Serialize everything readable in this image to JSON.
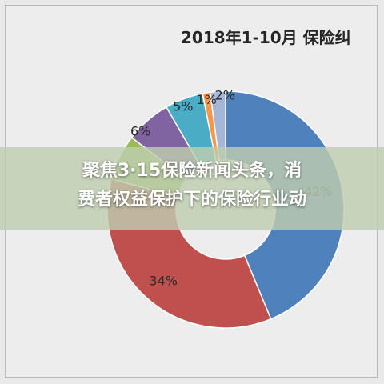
{
  "banner": {
    "line1": "聚焦3·15保险新闻头条，消",
    "line2": "费者权益保护下的保险行业动"
  },
  "chart_data": {
    "type": "pie",
    "title": "2018年1-10月 保险纠",
    "slices": [
      {
        "label": "",
        "value": 42,
        "display": "42%",
        "color": "#4f81bd"
      },
      {
        "label": "",
        "value": 34,
        "display": "34%",
        "color": "#c0504d"
      },
      {
        "label": "",
        "value": 6,
        "display": "",
        "color": "#9bbb59"
      },
      {
        "label": "",
        "value": 6,
        "display": "6%",
        "color": "#8064a2"
      },
      {
        "label": "",
        "value": 5,
        "display": "5%",
        "color": "#4bacc6"
      },
      {
        "label": "",
        "value": 1,
        "display": "1%",
        "color": "#f79646"
      },
      {
        "label": "",
        "value": 2,
        "display": "2%",
        "color": "#a5b6d6"
      }
    ],
    "donut": true
  }
}
